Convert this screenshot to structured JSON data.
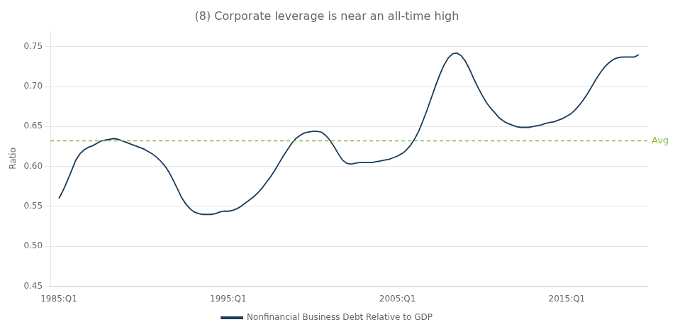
{
  "chart_data": {
    "type": "line",
    "title": "(8) Corporate leverage is near an all-time high",
    "ylabel": "Ratio",
    "x": [
      1985.0,
      1985.25,
      1985.5,
      1985.75,
      1986.0,
      1986.25,
      1986.5,
      1986.75,
      1987.0,
      1987.25,
      1987.5,
      1987.75,
      1988.0,
      1988.25,
      1988.5,
      1988.75,
      1989.0,
      1989.25,
      1989.5,
      1989.75,
      1990.0,
      1990.25,
      1990.5,
      1990.75,
      1991.0,
      1991.25,
      1991.5,
      1991.75,
      1992.0,
      1992.25,
      1992.5,
      1992.75,
      1993.0,
      1993.25,
      1993.5,
      1993.75,
      1994.0,
      1994.25,
      1994.5,
      1994.75,
      1995.0,
      1995.25,
      1995.5,
      1995.75,
      1996.0,
      1996.25,
      1996.5,
      1996.75,
      1997.0,
      1997.25,
      1997.5,
      1997.75,
      1998.0,
      1998.25,
      1998.5,
      1998.75,
      1999.0,
      1999.25,
      1999.5,
      1999.75,
      2000.0,
      2000.25,
      2000.5,
      2000.75,
      2001.0,
      2001.25,
      2001.5,
      2001.75,
      2002.0,
      2002.25,
      2002.5,
      2002.75,
      2003.0,
      2003.25,
      2003.5,
      2003.75,
      2004.0,
      2004.25,
      2004.5,
      2004.75,
      2005.0,
      2005.25,
      2005.5,
      2005.75,
      2006.0,
      2006.25,
      2006.5,
      2006.75,
      2007.0,
      2007.25,
      2007.5,
      2007.75,
      2008.0,
      2008.25,
      2008.5,
      2008.75,
      2009.0,
      2009.25,
      2009.5,
      2009.75,
      2010.0,
      2010.25,
      2010.5,
      2010.75,
      2011.0,
      2011.25,
      2011.5,
      2011.75,
      2012.0,
      2012.25,
      2012.5,
      2012.75,
      2013.0,
      2013.25,
      2013.5,
      2013.75,
      2014.0,
      2014.25,
      2014.5,
      2014.75,
      2015.0,
      2015.25,
      2015.5,
      2015.75,
      2016.0,
      2016.25,
      2016.5,
      2016.75,
      2017.0,
      2017.25,
      2017.5,
      2017.75,
      2018.0,
      2018.25,
      2018.5,
      2018.75,
      2019.0,
      2019.25
    ],
    "series": [
      {
        "name": "Nonfinancial Business Debt Relative to GDP",
        "color": "#1b3a5c",
        "values": [
          0.56,
          0.57,
          0.582,
          0.595,
          0.608,
          0.616,
          0.621,
          0.624,
          0.626,
          0.629,
          0.632,
          0.633,
          0.634,
          0.635,
          0.634,
          0.632,
          0.63,
          0.628,
          0.626,
          0.624,
          0.622,
          0.619,
          0.616,
          0.612,
          0.607,
          0.601,
          0.593,
          0.583,
          0.572,
          0.561,
          0.553,
          0.547,
          0.543,
          0.541,
          0.54,
          0.54,
          0.54,
          0.541,
          0.543,
          0.544,
          0.544,
          0.545,
          0.547,
          0.55,
          0.554,
          0.558,
          0.562,
          0.567,
          0.573,
          0.58,
          0.587,
          0.595,
          0.604,
          0.613,
          0.621,
          0.629,
          0.635,
          0.639,
          0.642,
          0.643,
          0.644,
          0.644,
          0.643,
          0.639,
          0.633,
          0.625,
          0.616,
          0.608,
          0.604,
          0.603,
          0.604,
          0.605,
          0.605,
          0.605,
          0.605,
          0.606,
          0.607,
          0.608,
          0.609,
          0.611,
          0.613,
          0.616,
          0.62,
          0.626,
          0.634,
          0.644,
          0.657,
          0.671,
          0.686,
          0.701,
          0.715,
          0.727,
          0.736,
          0.741,
          0.742,
          0.739,
          0.732,
          0.722,
          0.71,
          0.699,
          0.689,
          0.68,
          0.673,
          0.667,
          0.661,
          0.657,
          0.654,
          0.652,
          0.65,
          0.649,
          0.649,
          0.649,
          0.65,
          0.651,
          0.652,
          0.654,
          0.655,
          0.656,
          0.658,
          0.66,
          0.663,
          0.666,
          0.671,
          0.677,
          0.684,
          0.692,
          0.701,
          0.71,
          0.718,
          0.725,
          0.73,
          0.734,
          0.736,
          0.737,
          0.737,
          0.737,
          0.737,
          0.74
        ]
      }
    ],
    "reference_lines": [
      {
        "value": 0.632,
        "label": "Avg",
        "color": "#8db843",
        "line_style": "dashed"
      }
    ],
    "xlim": [
      1984.5,
      2019.8
    ],
    "xticks": [
      {
        "value": 1985,
        "label": "1985:Q1"
      },
      {
        "value": 1995,
        "label": "1995:Q1"
      },
      {
        "value": 2005,
        "label": "2005:Q1"
      },
      {
        "value": 2015,
        "label": "2015:Q1"
      }
    ],
    "ylim": [
      0.45,
      0.77
    ],
    "yticks": [
      0.45,
      {
        "value": 0.5,
        "label": "0.50"
      },
      0.55,
      {
        "value": 0.6,
        "label": "0.60"
      },
      0.65,
      {
        "value": 0.7,
        "label": "0.70"
      },
      0.75
    ],
    "grid": "y",
    "legend": "bottom"
  }
}
